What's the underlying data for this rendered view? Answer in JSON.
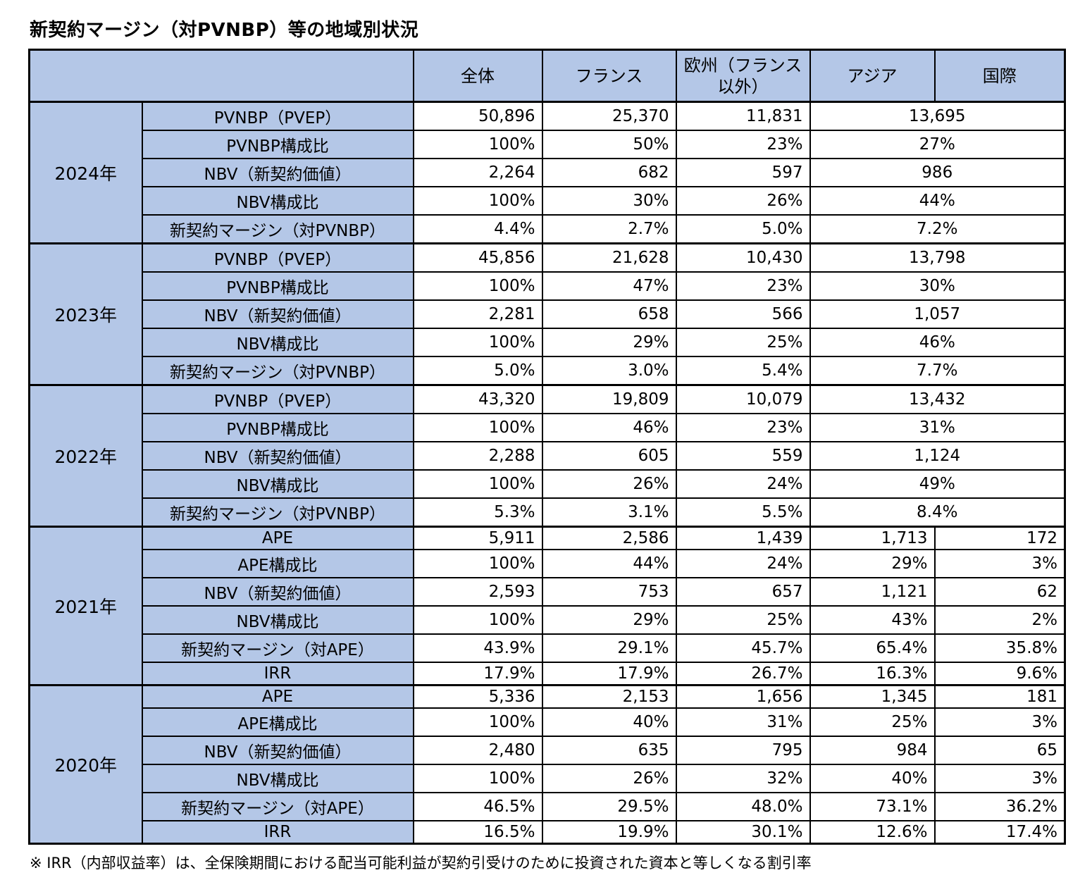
{
  "colors": {
    "header_fill": "#B4C7E7",
    "border": "#000000",
    "background": "#FFFFFF",
    "text": "#000000"
  },
  "chart_data": {
    "type": "table",
    "title": "新契約マージン（対PVNBP）等の地域別状況",
    "note": "※ IRR（内部収益率）は、全保険期間における配当可能利益が契約引受けのために投資された資本と等しくなる割引率",
    "column_headers": [
      "全体",
      "フランス",
      "欧州（フランス以外）",
      "アジア",
      "国際"
    ],
    "merged_note": "2024年・2023年・2022年のアジアと国際の列は1つのセルに結合されている",
    "groups": [
      {
        "year": "2024年",
        "rows": [
          {
            "label": "PVNBP（PVEP）",
            "values": [
              "50,896",
              "25,370",
              "11,831",
              "13,695"
            ],
            "asia_intl_merged": true
          },
          {
            "label": "PVNBP構成比",
            "values": [
              "100%",
              "50%",
              "23%",
              "27%"
            ],
            "asia_intl_merged": true
          },
          {
            "label": "NBV（新契約価値）",
            "values": [
              "2,264",
              "682",
              "597",
              "986"
            ],
            "asia_intl_merged": true
          },
          {
            "label": "NBV構成比",
            "values": [
              "100%",
              "30%",
              "26%",
              "44%"
            ],
            "asia_intl_merged": true
          },
          {
            "label": "新契約マージン（対PVNBP）",
            "values": [
              "4.4%",
              "2.7%",
              "5.0%",
              "7.2%"
            ],
            "asia_intl_merged": true
          }
        ]
      },
      {
        "year": "2023年",
        "rows": [
          {
            "label": "PVNBP（PVEP）",
            "values": [
              "45,856",
              "21,628",
              "10,430",
              "13,798"
            ],
            "asia_intl_merged": true
          },
          {
            "label": "PVNBP構成比",
            "values": [
              "100%",
              "47%",
              "23%",
              "30%"
            ],
            "asia_intl_merged": true
          },
          {
            "label": "NBV（新契約価値）",
            "values": [
              "2,281",
              "658",
              "566",
              "1,057"
            ],
            "asia_intl_merged": true
          },
          {
            "label": "NBV構成比",
            "values": [
              "100%",
              "29%",
              "25%",
              "46%"
            ],
            "asia_intl_merged": true
          },
          {
            "label": "新契約マージン（対PVNBP）",
            "values": [
              "5.0%",
              "3.0%",
              "5.4%",
              "7.7%"
            ],
            "asia_intl_merged": true
          }
        ]
      },
      {
        "year": "2022年",
        "rows": [
          {
            "label": "PVNBP（PVEP）",
            "values": [
              "43,320",
              "19,809",
              "10,079",
              "13,432"
            ],
            "asia_intl_merged": true
          },
          {
            "label": "PVNBP構成比",
            "values": [
              "100%",
              "46%",
              "23%",
              "31%"
            ],
            "asia_intl_merged": true
          },
          {
            "label": "NBV（新契約価値）",
            "values": [
              "2,288",
              "605",
              "559",
              "1,124"
            ],
            "asia_intl_merged": true
          },
          {
            "label": "NBV構成比",
            "values": [
              "100%",
              "26%",
              "24%",
              "49%"
            ],
            "asia_intl_merged": true
          },
          {
            "label": "新契約マージン（対PVNBP）",
            "values": [
              "5.3%",
              "3.1%",
              "5.5%",
              "8.4%"
            ],
            "asia_intl_merged": true
          }
        ]
      },
      {
        "year": "2021年",
        "rows": [
          {
            "label": "APE",
            "values": [
              "5,911",
              "2,586",
              "1,439",
              "1,713",
              "172"
            ]
          },
          {
            "label": "APE構成比",
            "values": [
              "100%",
              "44%",
              "24%",
              "29%",
              "3%"
            ]
          },
          {
            "label": "NBV（新契約価値）",
            "values": [
              "2,593",
              "753",
              "657",
              "1,121",
              "62"
            ]
          },
          {
            "label": "NBV構成比",
            "values": [
              "100%",
              "29%",
              "25%",
              "43%",
              "2%"
            ]
          },
          {
            "label": "新契約マージン（対APE）",
            "values": [
              "43.9%",
              "29.1%",
              "45.7%",
              "65.4%",
              "35.8%"
            ]
          },
          {
            "label": "IRR",
            "values": [
              "17.9%",
              "17.9%",
              "26.7%",
              "16.3%",
              "9.6%"
            ]
          }
        ]
      },
      {
        "year": "2020年",
        "rows": [
          {
            "label": "APE",
            "values": [
              "5,336",
              "2,153",
              "1,656",
              "1,345",
              "181"
            ]
          },
          {
            "label": "APE構成比",
            "values": [
              "100%",
              "40%",
              "31%",
              "25%",
              "3%"
            ]
          },
          {
            "label": "NBV（新契約価値）",
            "values": [
              "2,480",
              "635",
              "795",
              "984",
              "65"
            ]
          },
          {
            "label": "NBV構成比",
            "values": [
              "100%",
              "26%",
              "32%",
              "40%",
              "3%"
            ]
          },
          {
            "label": "新契約マージン（対APE）",
            "values": [
              "46.5%",
              "29.5%",
              "48.0%",
              "73.1%",
              "36.2%"
            ]
          },
          {
            "label": "IRR",
            "values": [
              "16.5%",
              "19.9%",
              "30.1%",
              "12.6%",
              "17.4%"
            ]
          }
        ]
      }
    ]
  }
}
